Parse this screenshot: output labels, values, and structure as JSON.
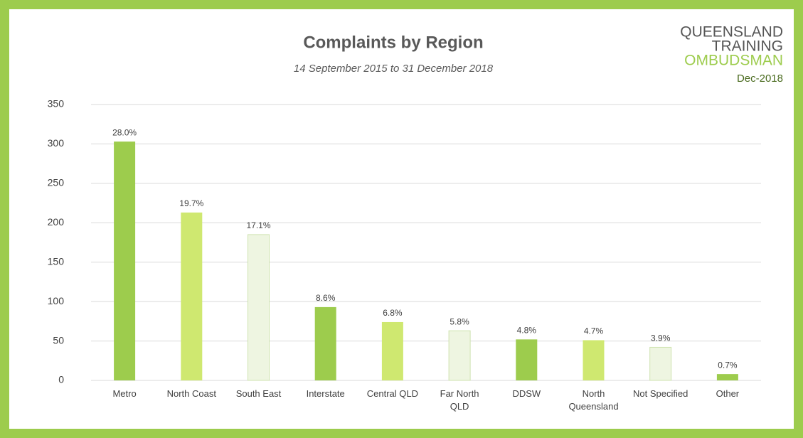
{
  "chart_data": {
    "type": "bar",
    "title": "Complaints by Region",
    "subtitle": "14 September 2015 to 31 December 2018",
    "logo": [
      "QUEENSLAND",
      "TRAINING",
      "OMBUDSMAN"
    ],
    "date_label": "Dec-2018",
    "categories": [
      "Metro",
      "North Coast",
      "South East",
      "Interstate",
      "Central QLD",
      "Far North QLD",
      "DDSW",
      "North Queensland",
      "Not Specified",
      "Other"
    ],
    "values": [
      303,
      213,
      185,
      93,
      74,
      63,
      52,
      51,
      42,
      8
    ],
    "share_labels": [
      "28.0%",
      "19.7%",
      "17.1%",
      "8.6%",
      "6.8%",
      "5.8%",
      "4.8%",
      "4.7%",
      "3.9%",
      "0.7%"
    ],
    "colors": [
      "#9dcc4d",
      "#cfe870",
      "#eef5e1"
    ],
    "ylim": [
      0,
      350
    ],
    "yticks": [
      0,
      50,
      100,
      150,
      200,
      250,
      300,
      350
    ],
    "grid": true
  }
}
